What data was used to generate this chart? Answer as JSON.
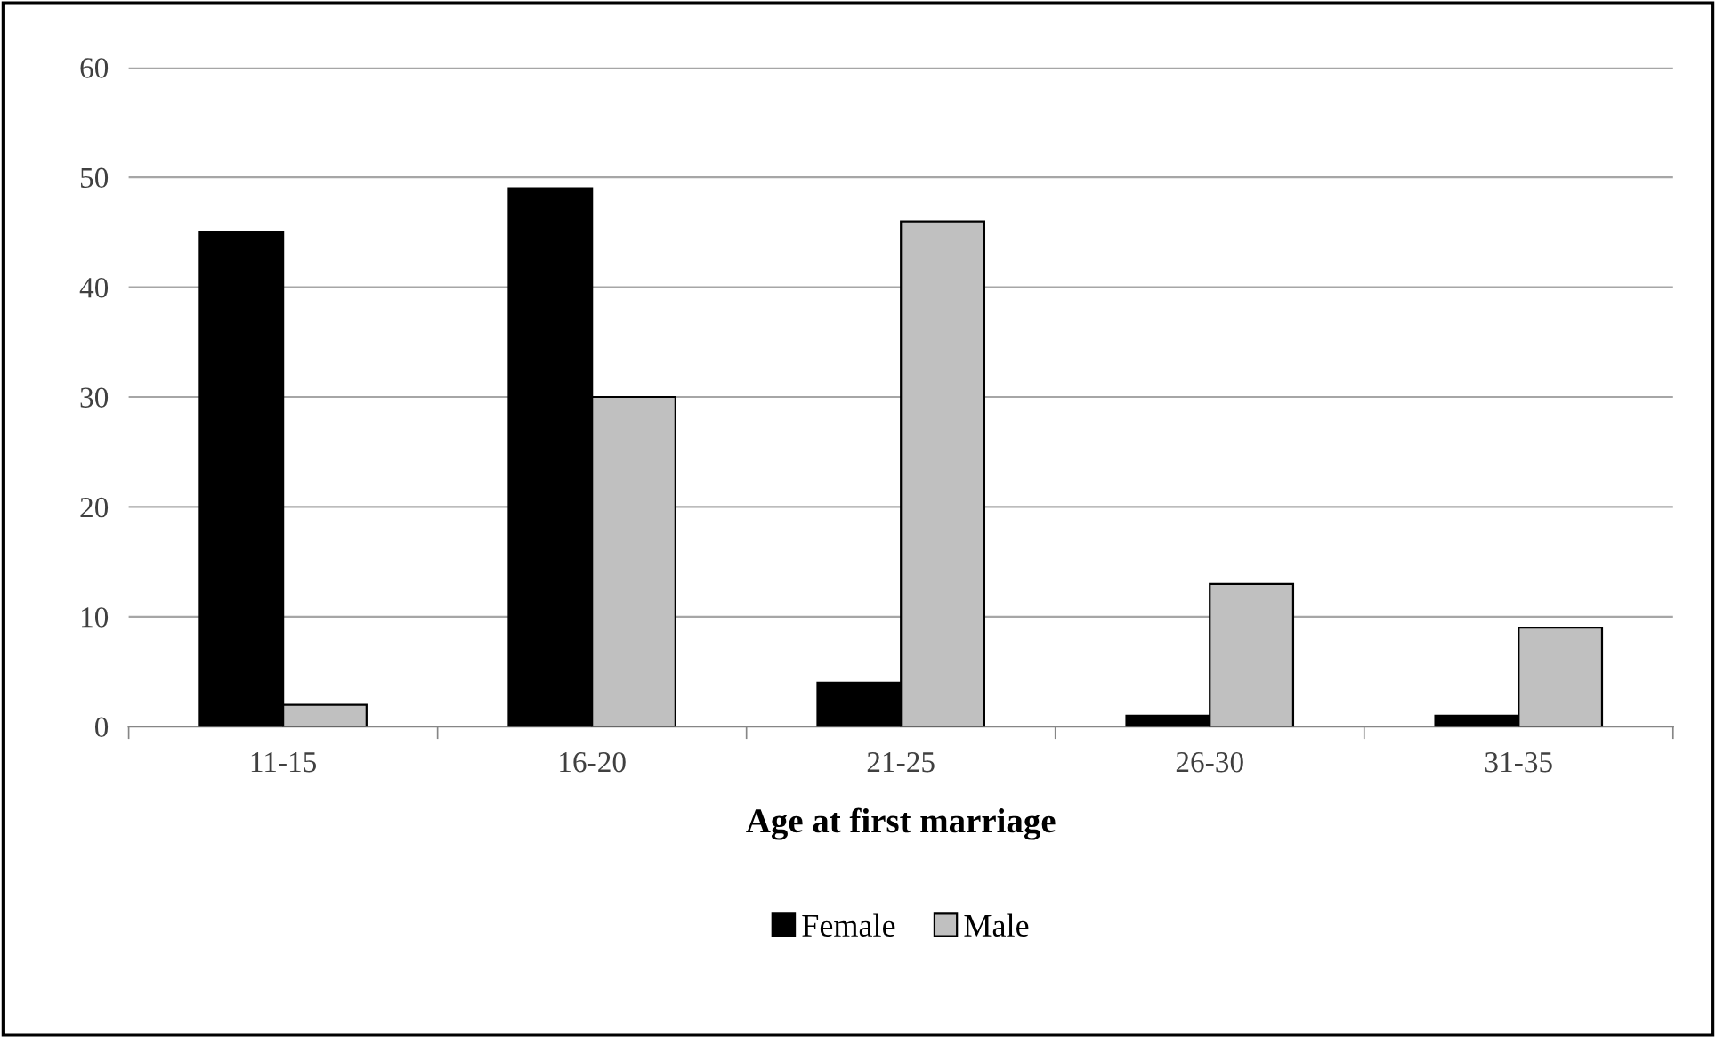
{
  "chart_data": {
    "type": "bar",
    "xlabel": "Age at first marriage",
    "categories": [
      "11-15",
      "16-20",
      "21-25",
      "26-30",
      "31-35"
    ],
    "series": [
      {
        "name": "Female",
        "color": "#000000",
        "values": [
          45,
          49,
          4,
          1,
          1
        ]
      },
      {
        "name": "Male",
        "color": "#c0c0c0",
        "values": [
          2,
          30,
          46,
          13,
          9
        ]
      }
    ],
    "ylim": [
      0,
      60
    ],
    "yticks": [
      0,
      10,
      20,
      30,
      40,
      50,
      60
    ],
    "grid": "y",
    "legend": "bottom"
  }
}
